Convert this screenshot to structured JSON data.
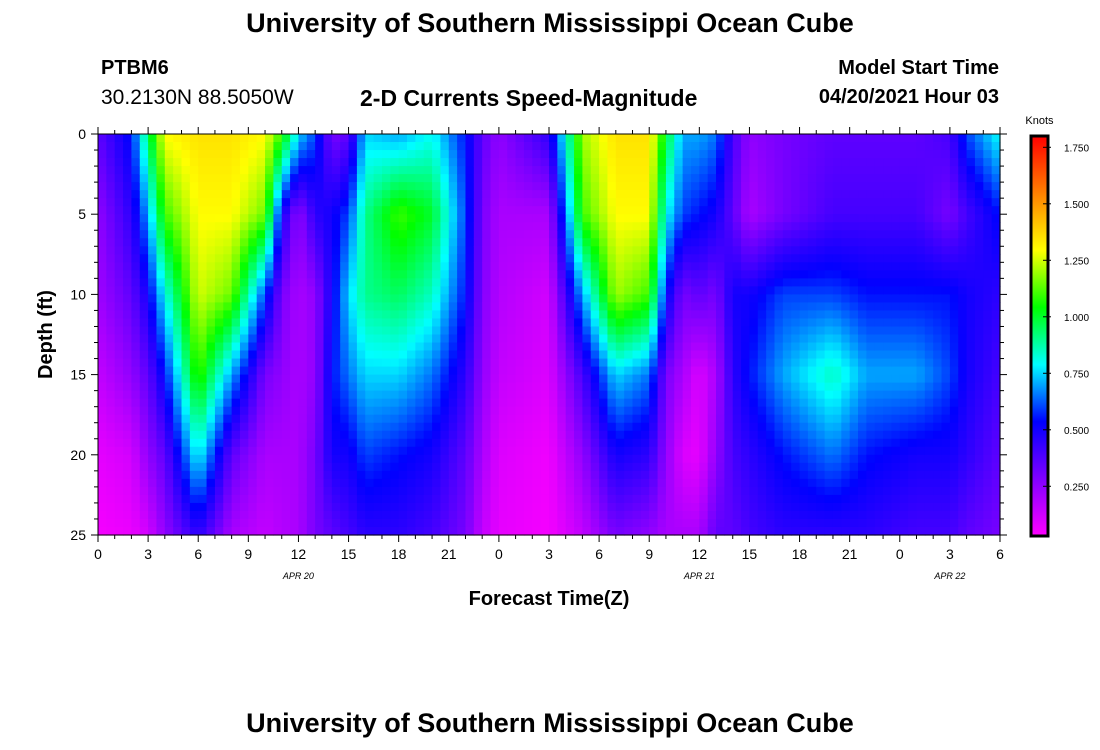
{
  "header": {
    "title": "University of Southern Mississippi Ocean Cube",
    "station_id": "PTBM6",
    "station_coords": "30.2130N  88.5050W",
    "chart_title": "2-D Currents Speed-Magnitude",
    "model_label": "Model Start Time",
    "model_time": "04/20/2021 Hour 03"
  },
  "footer": {
    "title": "University of Southern Mississippi Ocean Cube"
  },
  "chart_data": {
    "type": "heatmap",
    "title": "2-D Currents Speed-Magnitude",
    "xlabel": "Forecast Time(Z)",
    "ylabel": "Depth (ft)",
    "x_tick_labels": [
      "0",
      "3",
      "6",
      "9",
      "12",
      "15",
      "18",
      "21",
      "0",
      "3",
      "6",
      "9",
      "12",
      "15",
      "18",
      "21",
      "0",
      "3",
      "6"
    ],
    "x_range_hours": [
      0,
      54
    ],
    "date_labels": [
      {
        "text": "APR 20",
        "hour": 12
      },
      {
        "text": "APR 21",
        "hour": 36
      },
      {
        "text": "APR 22",
        "hour": 51
      }
    ],
    "y_ticks": [
      0,
      5,
      10,
      15,
      20,
      25
    ],
    "y_range": [
      0,
      25
    ],
    "colorbar": {
      "title": "Knots",
      "ticks": [
        "1.750",
        "1.500",
        "1.250",
        "1.000",
        "0.750",
        "0.500",
        "0.250"
      ],
      "tick_values": [
        1.75,
        1.5,
        1.25,
        1.0,
        0.75,
        0.5,
        0.25
      ],
      "range": [
        0.03,
        1.8
      ],
      "colors": [
        "#ff00ff",
        "#8000ff",
        "#0000ff",
        "#00ffff",
        "#00ff00",
        "#ffff00",
        "#ff8000",
        "#ff0000"
      ]
    },
    "depth_levels": [
      0,
      5,
      10,
      15,
      20,
      25
    ],
    "speed_profiles": [
      {
        "hour": 0,
        "speeds": [
          0.35,
          0.25,
          0.22,
          0.15,
          0.08,
          0.05
        ]
      },
      {
        "hour": 2,
        "speeds": [
          0.55,
          0.45,
          0.35,
          0.25,
          0.12,
          0.07
        ]
      },
      {
        "hour": 3,
        "speeds": [
          0.95,
          0.7,
          0.5,
          0.35,
          0.25,
          0.12
        ]
      },
      {
        "hour": 4,
        "speeds": [
          1.3,
          1.1,
          0.8,
          0.55,
          0.35,
          0.25
        ]
      },
      {
        "hour": 6,
        "speeds": [
          1.35,
          1.3,
          1.25,
          1.1,
          0.8,
          0.45
        ]
      },
      {
        "hour": 8,
        "speeds": [
          1.35,
          1.3,
          1.15,
          0.7,
          0.35,
          0.2
        ]
      },
      {
        "hour": 10,
        "speeds": [
          1.3,
          1.15,
          0.6,
          0.3,
          0.2,
          0.15
        ]
      },
      {
        "hour": 11,
        "speeds": [
          1.1,
          0.5,
          0.3,
          0.25,
          0.2,
          0.18
        ]
      },
      {
        "hour": 12,
        "speeds": [
          0.75,
          0.25,
          0.2,
          0.2,
          0.2,
          0.2
        ]
      },
      {
        "hour": 13,
        "speeds": [
          0.6,
          0.45,
          0.25,
          0.25,
          0.3,
          0.3
        ]
      },
      {
        "hour": 14,
        "speeds": [
          0.3,
          0.5,
          0.5,
          0.55,
          0.5,
          0.35
        ]
      },
      {
        "hour": 15,
        "speeds": [
          0.35,
          0.6,
          0.75,
          0.65,
          0.5,
          0.4
        ]
      },
      {
        "hour": 16,
        "speeds": [
          0.75,
          0.9,
          0.9,
          0.75,
          0.6,
          0.45
        ]
      },
      {
        "hour": 18,
        "speeds": [
          0.7,
          1.1,
          0.95,
          0.75,
          0.55,
          0.45
        ]
      },
      {
        "hour": 20,
        "speeds": [
          0.8,
          1.0,
          0.85,
          0.65,
          0.5,
          0.4
        ]
      },
      {
        "hour": 22,
        "speeds": [
          0.55,
          0.6,
          0.55,
          0.45,
          0.35,
          0.3
        ]
      },
      {
        "hour": 23,
        "speeds": [
          0.35,
          0.3,
          0.28,
          0.25,
          0.2,
          0.15
        ]
      },
      {
        "hour": 24,
        "speeds": [
          0.25,
          0.2,
          0.18,
          0.15,
          0.1,
          0.08
        ]
      },
      {
        "hour": 27,
        "speeds": [
          0.45,
          0.2,
          0.12,
          0.1,
          0.06,
          0.05
        ]
      },
      {
        "hour": 29,
        "speeds": [
          1.2,
          1.1,
          0.7,
          0.4,
          0.25,
          0.15
        ]
      },
      {
        "hour": 31,
        "speeds": [
          1.35,
          1.3,
          1.2,
          0.75,
          0.5,
          0.3
        ]
      },
      {
        "hour": 33,
        "speeds": [
          1.35,
          1.3,
          1.1,
          0.65,
          0.45,
          0.25
        ]
      },
      {
        "hour": 34,
        "speeds": [
          1.0,
          0.8,
          0.55,
          0.3,
          0.25,
          0.2
        ]
      },
      {
        "hour": 35,
        "speeds": [
          0.7,
          0.6,
          0.3,
          0.2,
          0.1,
          0.2
        ]
      },
      {
        "hour": 36,
        "speeds": [
          0.7,
          0.55,
          0.35,
          0.1,
          0.08,
          0.2
        ]
      },
      {
        "hour": 37,
        "speeds": [
          0.65,
          0.5,
          0.3,
          0.2,
          0.25,
          0.35
        ]
      },
      {
        "hour": 38,
        "speeds": [
          0.4,
          0.35,
          0.5,
          0.45,
          0.4,
          0.35
        ]
      },
      {
        "hour": 39,
        "speeds": [
          0.25,
          0.2,
          0.5,
          0.55,
          0.45,
          0.4
        ]
      },
      {
        "hour": 41,
        "speeds": [
          0.3,
          0.3,
          0.6,
          0.7,
          0.55,
          0.45
        ]
      },
      {
        "hour": 44,
        "speeds": [
          0.35,
          0.4,
          0.6,
          0.85,
          0.65,
          0.45
        ]
      },
      {
        "hour": 46,
        "speeds": [
          0.35,
          0.4,
          0.55,
          0.7,
          0.55,
          0.45
        ]
      },
      {
        "hour": 49,
        "speeds": [
          0.35,
          0.4,
          0.55,
          0.7,
          0.5,
          0.4
        ]
      },
      {
        "hour": 51,
        "speeds": [
          0.4,
          0.3,
          0.55,
          0.6,
          0.5,
          0.4
        ]
      },
      {
        "hour": 52,
        "speeds": [
          0.6,
          0.4,
          0.5,
          0.5,
          0.45,
          0.35
        ]
      },
      {
        "hour": 54,
        "speeds": [
          0.8,
          0.55,
          0.45,
          0.4,
          0.35,
          0.3
        ]
      }
    ]
  }
}
